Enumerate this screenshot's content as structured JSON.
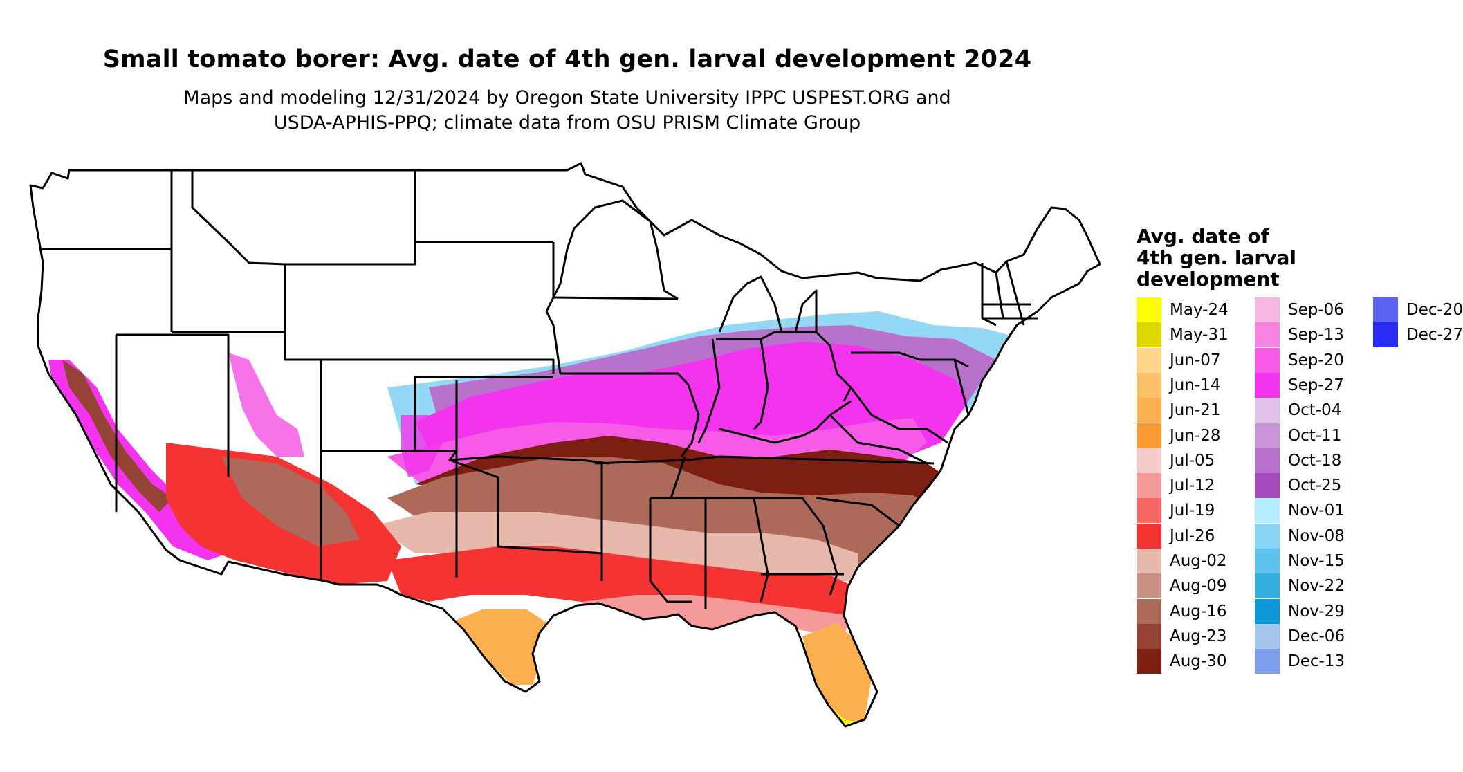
{
  "title": "Small tomato borer: Avg. date of 4th gen. larval development 2024",
  "subtitle_line1": "Maps and modeling 12/31/2024 by Oregon State University IPPC USPEST.ORG and",
  "subtitle_line2": "USDA-APHIS-PPQ; climate data from OSU PRISM Climate Group",
  "legend": {
    "title_lines": [
      "Avg. date of",
      "4th gen. larval",
      "development"
    ],
    "items": [
      {
        "label": "May-24",
        "color": "#ffff00"
      },
      {
        "label": "May-31",
        "color": "#dcd800"
      },
      {
        "label": "Jun-07",
        "color": "#fdd68a"
      },
      {
        "label": "Jun-14",
        "color": "#fcc26a"
      },
      {
        "label": "Jun-21",
        "color": "#fbaf4e"
      },
      {
        "label": "Jun-28",
        "color": "#f99a33"
      },
      {
        "label": "Jul-05",
        "color": "#f5cccc"
      },
      {
        "label": "Jul-12",
        "color": "#f59a9a"
      },
      {
        "label": "Jul-19",
        "color": "#f56666"
      },
      {
        "label": "Jul-26",
        "color": "#f53333"
      },
      {
        "label": "Aug-02",
        "color": "#e6b9ac"
      },
      {
        "label": "Aug-09",
        "color": "#c99183"
      },
      {
        "label": "Aug-16",
        "color": "#ad6a5b"
      },
      {
        "label": "Aug-23",
        "color": "#944334"
      },
      {
        "label": "Aug-30",
        "color": "#7d1f10"
      },
      {
        "label": "Sep-06",
        "color": "#f8b4e2"
      },
      {
        "label": "Sep-13",
        "color": "#f884e2"
      },
      {
        "label": "Sep-20",
        "color": "#f65ae6"
      },
      {
        "label": "Sep-27",
        "color": "#f333ee"
      },
      {
        "label": "Oct-04",
        "color": "#e0bfe8"
      },
      {
        "label": "Oct-11",
        "color": "#cc94d8"
      },
      {
        "label": "Oct-18",
        "color": "#b872cc"
      },
      {
        "label": "Oct-25",
        "color": "#a44cbd"
      },
      {
        "label": "Nov-01",
        "color": "#b3ecfc"
      },
      {
        "label": "Nov-08",
        "color": "#88d4f4"
      },
      {
        "label": "Nov-15",
        "color": "#5fc2ec"
      },
      {
        "label": "Nov-22",
        "color": "#33aee0"
      },
      {
        "label": "Nov-29",
        "color": "#0f97d8"
      },
      {
        "label": "Dec-06",
        "color": "#a4c4ea"
      },
      {
        "label": "Dec-13",
        "color": "#7d9eee"
      },
      {
        "label": "Dec-20",
        "color": "#5a64f0"
      },
      {
        "label": "Dec-27",
        "color": "#2b2bf8"
      }
    ]
  }
}
